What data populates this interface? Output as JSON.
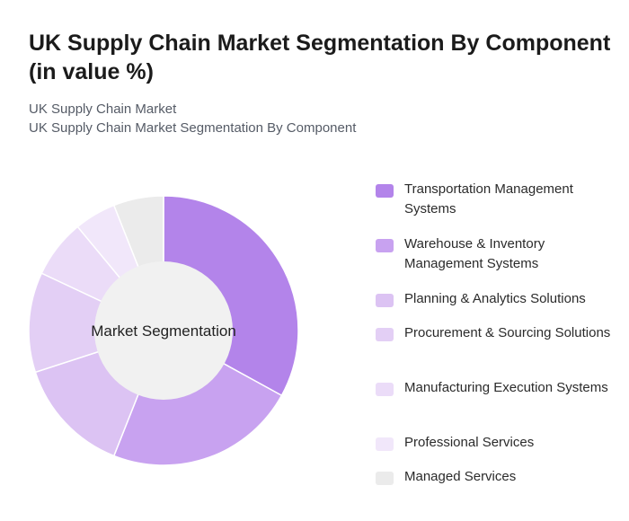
{
  "header": {
    "title": "UK Supply Chain Market Segmentation By Component (in value %)",
    "breadcrumb_1": "UK Supply Chain Market",
    "breadcrumb_2": "UK Supply Chain Market Segmentation By Component"
  },
  "chart_data": {
    "type": "pie",
    "variant": "donut",
    "center_label": "Market Segmentation",
    "legend_position": "right",
    "slices": [
      {
        "label": "Transportation Management Systems",
        "value": 33,
        "color": "#b384ea"
      },
      {
        "label": "Warehouse & Inventory Management Systems",
        "value": 23,
        "color": "#c8a2f0"
      },
      {
        "label": "Planning & Analytics Solutions",
        "value": 14,
        "color": "#dcc3f3"
      },
      {
        "label": "Procurement & Sourcing Solutions",
        "value": 12,
        "color": "#e3cff5"
      },
      {
        "label": "Manufacturing Execution Systems",
        "value": 7,
        "color": "#ebdcf8"
      },
      {
        "label": "Professional Services",
        "value": 5,
        "color": "#f1e7fa"
      },
      {
        "label": "Managed Services",
        "value": 6,
        "color": "#ebebeb"
      }
    ]
  }
}
